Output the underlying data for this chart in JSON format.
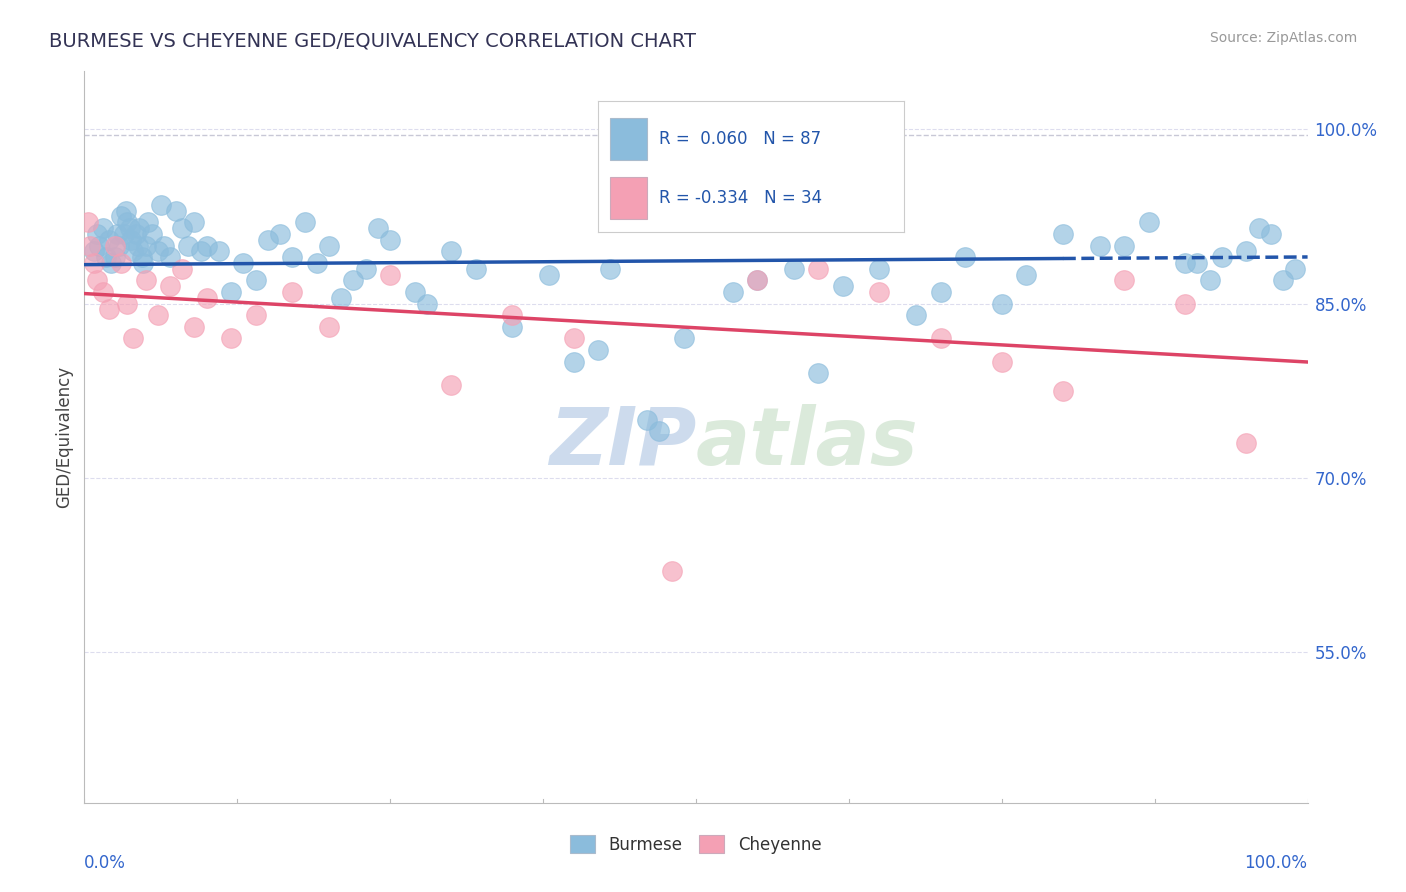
{
  "title": "BURMESE VS CHEYENNE GED/EQUIVALENCY CORRELATION CHART",
  "ylabel": "GED/Equivalency",
  "source": "Source: ZipAtlas.com",
  "burmese_R": 0.06,
  "burmese_N": 87,
  "cheyenne_R": -0.334,
  "cheyenne_N": 34,
  "burmese_color": "#8BBCDC",
  "cheyenne_color": "#F4A0B4",
  "burmese_line_color": "#2255AA",
  "cheyenne_line_color": "#DD4466",
  "grid_color": "#DDDDEE",
  "dashed_top_color": "#BBBBCC",
  "watermark_color": "#C8D8EC",
  "background_color": "#FFFFFF",
  "right_label_color": "#3366CC",
  "burmese_x": [
    0.8,
    1.0,
    1.2,
    1.5,
    1.8,
    2.0,
    2.2,
    2.5,
    2.7,
    2.8,
    3.0,
    3.2,
    3.4,
    3.5,
    3.7,
    3.8,
    4.0,
    4.2,
    4.4,
    4.5,
    4.7,
    4.8,
    5.0,
    5.2,
    5.5,
    6.0,
    6.3,
    6.5,
    7.0,
    7.5,
    8.0,
    8.5,
    9.0,
    9.5,
    10.0,
    11.0,
    12.0,
    13.0,
    14.0,
    15.0,
    16.0,
    17.0,
    18.0,
    19.0,
    20.0,
    21.0,
    22.0,
    23.0,
    24.0,
    25.0,
    27.0,
    28.0,
    30.0,
    32.0,
    35.0,
    38.0,
    40.0,
    43.0,
    46.0,
    49.0,
    52.0,
    55.0,
    60.0,
    65.0,
    70.0,
    75.0,
    80.0,
    85.0,
    90.0,
    92.0,
    95.0,
    97.0,
    99.0,
    47.0,
    58.0,
    62.0,
    68.0,
    72.0,
    77.0,
    83.0,
    87.0,
    91.0,
    93.0,
    96.0,
    98.0,
    42.0,
    53.0
  ],
  "burmese_y": [
    89.5,
    91.0,
    90.0,
    91.5,
    89.0,
    90.5,
    88.5,
    89.0,
    91.0,
    90.0,
    92.5,
    91.0,
    93.0,
    92.0,
    91.5,
    90.5,
    89.5,
    91.0,
    90.0,
    91.5,
    89.0,
    88.5,
    90.0,
    92.0,
    91.0,
    89.5,
    93.5,
    90.0,
    89.0,
    93.0,
    91.5,
    90.0,
    92.0,
    89.5,
    90.0,
    89.5,
    86.0,
    88.5,
    87.0,
    90.5,
    91.0,
    89.0,
    92.0,
    88.5,
    90.0,
    85.5,
    87.0,
    88.0,
    91.5,
    90.5,
    86.0,
    85.0,
    89.5,
    88.0,
    83.0,
    87.5,
    80.0,
    88.0,
    75.0,
    82.0,
    92.0,
    87.0,
    79.0,
    88.0,
    86.0,
    85.0,
    91.0,
    90.0,
    88.5,
    87.0,
    89.5,
    91.0,
    88.0,
    74.0,
    88.0,
    86.5,
    84.0,
    89.0,
    87.5,
    90.0,
    92.0,
    88.5,
    89.0,
    91.5,
    87.0,
    81.0,
    86.0
  ],
  "cheyenne_x": [
    0.3,
    0.5,
    0.8,
    1.0,
    1.5,
    2.0,
    2.5,
    3.0,
    3.5,
    4.0,
    5.0,
    6.0,
    7.0,
    8.0,
    9.0,
    10.0,
    12.0,
    14.0,
    17.0,
    20.0,
    25.0,
    30.0,
    35.0,
    40.0,
    48.0,
    55.0,
    60.0,
    65.0,
    70.0,
    75.0,
    80.0,
    85.0,
    90.0,
    95.0
  ],
  "cheyenne_y": [
    92.0,
    90.0,
    88.5,
    87.0,
    86.0,
    84.5,
    90.0,
    88.5,
    85.0,
    82.0,
    87.0,
    84.0,
    86.5,
    88.0,
    83.0,
    85.5,
    82.0,
    84.0,
    86.0,
    83.0,
    87.5,
    78.0,
    84.0,
    82.0,
    62.0,
    87.0,
    88.0,
    86.0,
    82.0,
    80.0,
    77.5,
    87.0,
    85.0,
    73.0
  ],
  "xlim": [
    0,
    100
  ],
  "ylim": [
    42,
    105
  ],
  "ytick_positions": [
    55.0,
    70.0,
    85.0,
    100.0
  ],
  "ytick_labels": [
    "55.0%",
    "70.0%",
    "85.0%",
    "100.0%"
  ],
  "dashed_top_y": 99.5
}
